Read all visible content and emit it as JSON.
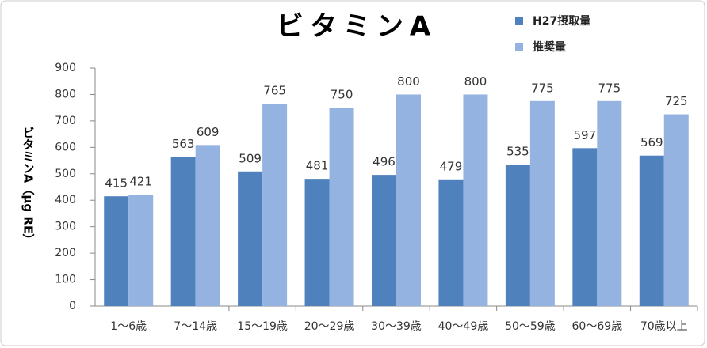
{
  "chart_data": {
    "type": "bar",
    "title": "ビタミンA",
    "y_label": "ビタミンA（μg RE）",
    "categories": [
      "1～6歳",
      "7～14歳",
      "15～19歳",
      "20～29歳",
      "30～39歳",
      "40～49歳",
      "50～59歳",
      "60～69歳",
      "70歳以上"
    ],
    "series": [
      {
        "name": "H27摂取量",
        "color": "#4f81bd",
        "values": [
          415,
          563,
          509,
          481,
          496,
          479,
          535,
          597,
          569
        ]
      },
      {
        "name": "推奨量",
        "color": "#95b3e0",
        "values": [
          421,
          609,
          765,
          750,
          800,
          800,
          775,
          775,
          725
        ]
      }
    ],
    "ylim": [
      0,
      900
    ],
    "yticks": [
      0,
      100,
      200,
      300,
      400,
      500,
      600,
      700,
      800,
      900
    ]
  }
}
